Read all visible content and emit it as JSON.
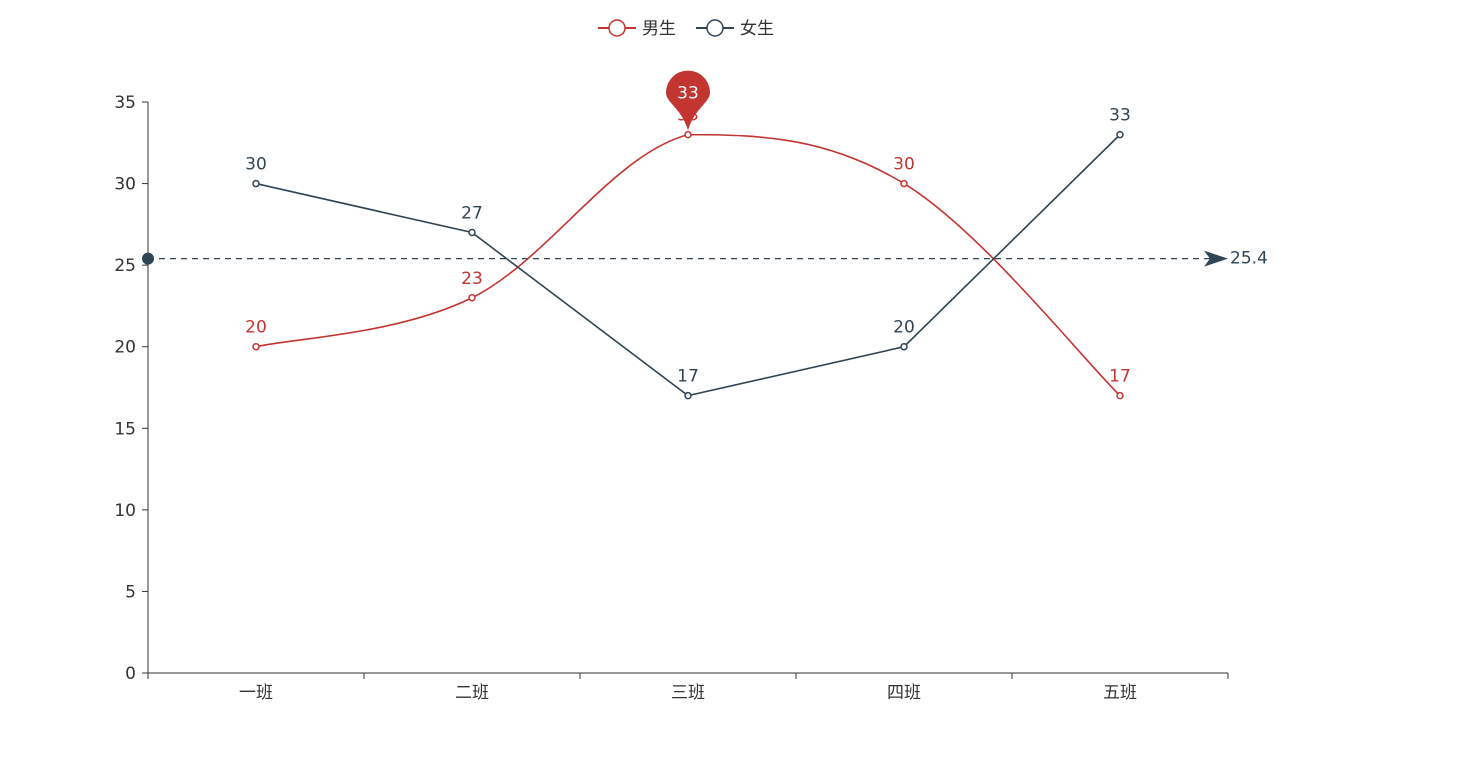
{
  "chart_data": {
    "type": "line",
    "categories": [
      "一班",
      "二班",
      "三班",
      "四班",
      "五班"
    ],
    "series": [
      {
        "name": "男生",
        "values": [
          20,
          23,
          33,
          30,
          17
        ],
        "color": "#c23531",
        "smooth": true,
        "max_marker": {
          "value": 33,
          "category": "三班"
        }
      },
      {
        "name": "女生",
        "values": [
          30,
          27,
          17,
          20,
          33
        ],
        "color": "#2f4554",
        "smooth": false
      }
    ],
    "average_line": {
      "value": 25.4,
      "label": "25.4",
      "color": "#2f4554"
    },
    "y_ticks": [
      0,
      5,
      10,
      15,
      20,
      25,
      30,
      35
    ],
    "ylim": [
      0,
      35
    ],
    "legend_position": "top-center",
    "grid": false
  }
}
